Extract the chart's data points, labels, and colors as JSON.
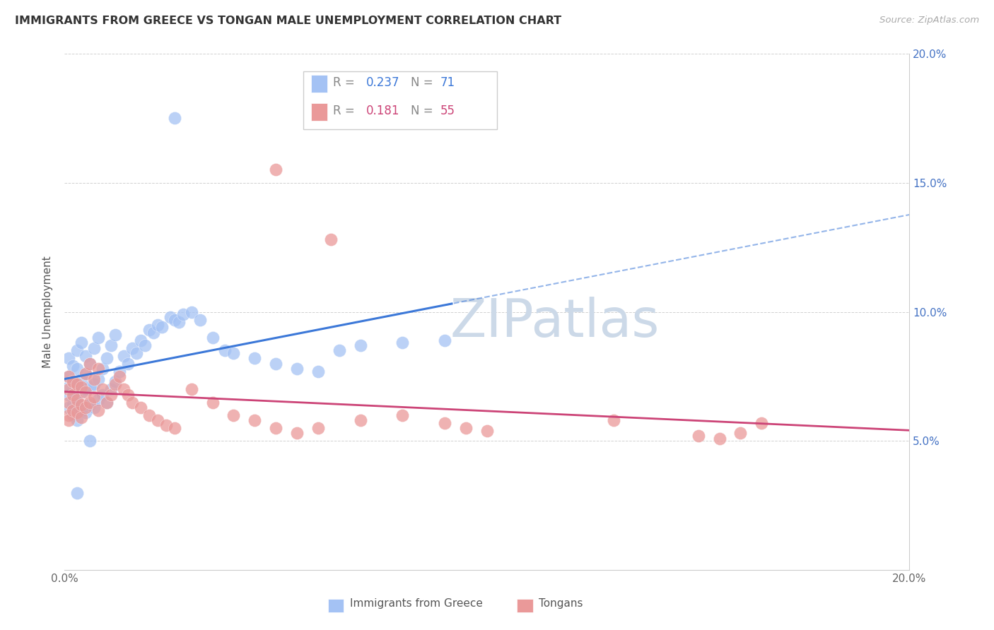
{
  "title": "IMMIGRANTS FROM GREECE VS TONGAN MALE UNEMPLOYMENT CORRELATION CHART",
  "source": "Source: ZipAtlas.com",
  "ylabel_label": "Male Unemployment",
  "x_label_bottom": "Immigrants from Greece",
  "x_label_bottom2": "Tongans",
  "xlim": [
    0.0,
    0.2
  ],
  "ylim": [
    0.0,
    0.2
  ],
  "blue_R": 0.237,
  "blue_N": 71,
  "pink_R": 0.181,
  "pink_N": 55,
  "blue_color": "#a4c2f4",
  "pink_color": "#ea9999",
  "blue_line_color": "#3c78d8",
  "pink_line_color": "#cc4477",
  "grid_color": "#cccccc",
  "bg_color": "#ffffff",
  "watermark_color": "#ccd9e8",
  "title_color": "#333333",
  "tick_color_right": "#4472c4",
  "blue_x": [
    0.001,
    0.001,
    0.001,
    0.001,
    0.001,
    0.002,
    0.002,
    0.002,
    0.002,
    0.002,
    0.003,
    0.003,
    0.003,
    0.003,
    0.003,
    0.004,
    0.004,
    0.004,
    0.004,
    0.005,
    0.005,
    0.005,
    0.005,
    0.006,
    0.006,
    0.006,
    0.007,
    0.007,
    0.007,
    0.008,
    0.008,
    0.008,
    0.009,
    0.009,
    0.01,
    0.01,
    0.011,
    0.011,
    0.012,
    0.012,
    0.013,
    0.014,
    0.015,
    0.016,
    0.017,
    0.018,
    0.019,
    0.02,
    0.021,
    0.022,
    0.023,
    0.025,
    0.026,
    0.027,
    0.028,
    0.03,
    0.032,
    0.035,
    0.038,
    0.04,
    0.045,
    0.05,
    0.055,
    0.06,
    0.065,
    0.07,
    0.08,
    0.09,
    0.026,
    0.003,
    0.006
  ],
  "blue_y": [
    0.063,
    0.068,
    0.071,
    0.075,
    0.082,
    0.06,
    0.064,
    0.067,
    0.073,
    0.079,
    0.058,
    0.065,
    0.072,
    0.078,
    0.085,
    0.062,
    0.069,
    0.074,
    0.088,
    0.061,
    0.07,
    0.076,
    0.083,
    0.064,
    0.071,
    0.08,
    0.063,
    0.072,
    0.086,
    0.066,
    0.074,
    0.09,
    0.068,
    0.078,
    0.065,
    0.082,
    0.07,
    0.087,
    0.073,
    0.091,
    0.077,
    0.083,
    0.08,
    0.086,
    0.084,
    0.089,
    0.087,
    0.093,
    0.092,
    0.095,
    0.094,
    0.098,
    0.097,
    0.096,
    0.099,
    0.1,
    0.097,
    0.09,
    0.085,
    0.084,
    0.082,
    0.08,
    0.078,
    0.077,
    0.085,
    0.087,
    0.088,
    0.089,
    0.175,
    0.03,
    0.05
  ],
  "pink_x": [
    0.001,
    0.001,
    0.001,
    0.001,
    0.001,
    0.002,
    0.002,
    0.002,
    0.003,
    0.003,
    0.003,
    0.004,
    0.004,
    0.004,
    0.005,
    0.005,
    0.005,
    0.006,
    0.006,
    0.007,
    0.007,
    0.008,
    0.008,
    0.009,
    0.01,
    0.011,
    0.012,
    0.013,
    0.014,
    0.015,
    0.016,
    0.018,
    0.02,
    0.022,
    0.024,
    0.026,
    0.03,
    0.035,
    0.04,
    0.045,
    0.05,
    0.055,
    0.06,
    0.07,
    0.08,
    0.09,
    0.095,
    0.1,
    0.13,
    0.15,
    0.155,
    0.16,
    0.165,
    0.05,
    0.063
  ],
  "pink_y": [
    0.06,
    0.065,
    0.07,
    0.075,
    0.058,
    0.062,
    0.068,
    0.073,
    0.061,
    0.066,
    0.072,
    0.059,
    0.064,
    0.071,
    0.063,
    0.069,
    0.076,
    0.065,
    0.08,
    0.067,
    0.074,
    0.062,
    0.078,
    0.07,
    0.065,
    0.068,
    0.072,
    0.075,
    0.07,
    0.068,
    0.065,
    0.063,
    0.06,
    0.058,
    0.056,
    0.055,
    0.07,
    0.065,
    0.06,
    0.058,
    0.055,
    0.053,
    0.055,
    0.058,
    0.06,
    0.057,
    0.055,
    0.054,
    0.058,
    0.052,
    0.051,
    0.053,
    0.057,
    0.155,
    0.128
  ]
}
